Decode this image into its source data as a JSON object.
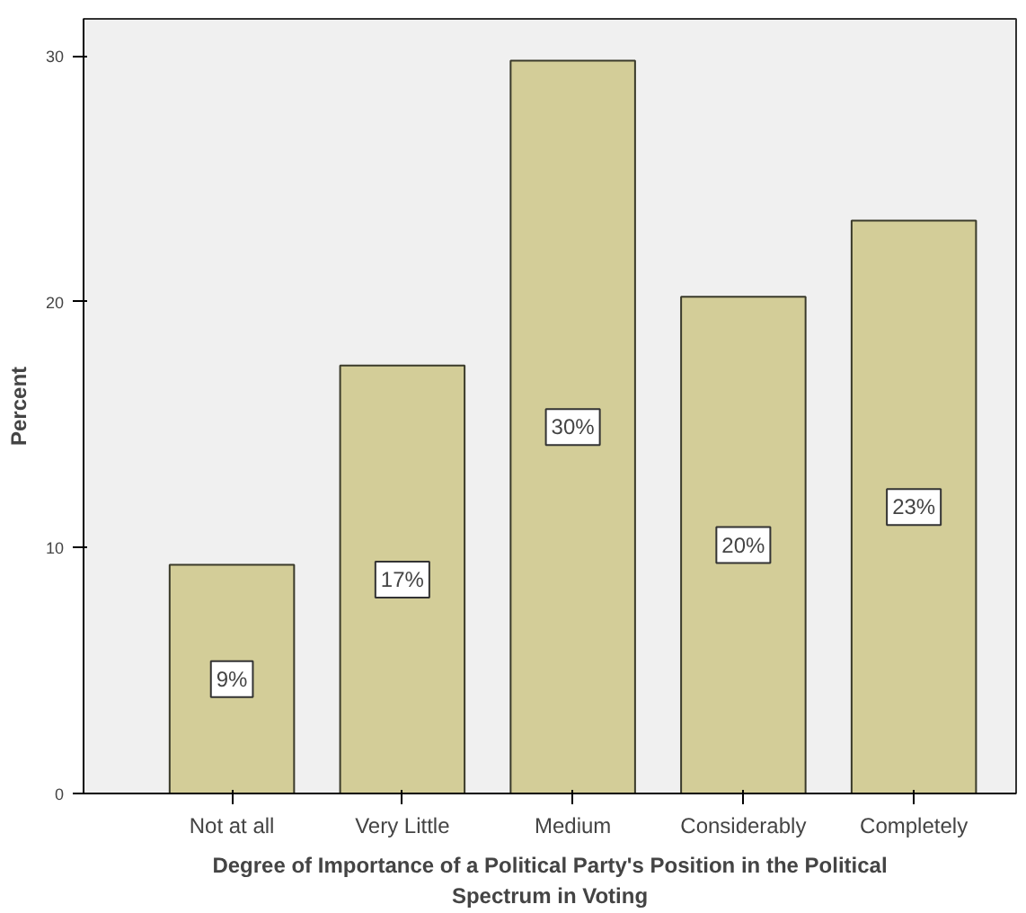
{
  "chart_data": {
    "type": "bar",
    "xlabel": "Degree of Importance of a Political Party's Position in the Political Spectrum in Voting",
    "ylabel": "Percent",
    "categories": [
      "Not at all",
      "Very Little",
      "Medium",
      "Considerably",
      "Completely"
    ],
    "values": [
      9.3,
      17.4,
      29.8,
      20.2,
      23.3
    ],
    "value_labels": [
      "9%",
      "17%",
      "30%",
      "20%",
      "23%"
    ],
    "color": "#d3cd98",
    "ylim": [
      0,
      31.5
    ],
    "yticks": [
      0,
      10,
      20,
      30
    ],
    "grid": false
  }
}
